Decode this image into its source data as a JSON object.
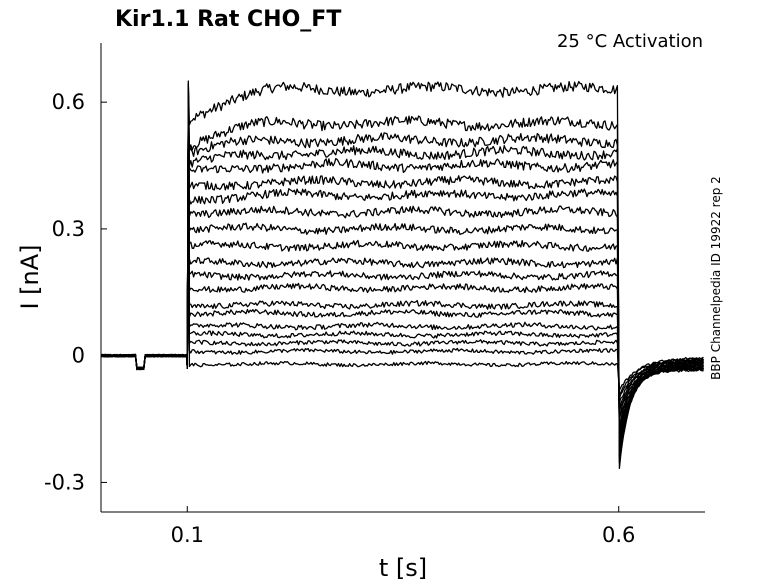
{
  "chart_data": {
    "type": "line",
    "title": "Kir1.1  Rat  CHO_FT",
    "subtitle": "25 °C  Activation",
    "xlabel": "t [s]",
    "ylabel": "I [nA]",
    "side_label": "BBP Channelpedia ID 19922 rep 2",
    "xlim": [
      0.0,
      0.7
    ],
    "ylim": [
      -0.37,
      0.74
    ],
    "xticks": [
      0.1,
      0.6
    ],
    "xtick_labels": [
      "0.1",
      "0.6"
    ],
    "yticks": [
      -0.3,
      0,
      0.3,
      0.6
    ],
    "ytick_labels": [
      "-0.3",
      "0",
      "0.3",
      "0.6"
    ],
    "grid": false,
    "pulse": {
      "start": 0.1,
      "end": 0.6
    },
    "artifact": {
      "start": 0.04,
      "end": 0.05,
      "value": -0.03
    },
    "series_steady_state_nA": [
      0.63,
      0.55,
      0.51,
      0.48,
      0.45,
      0.41,
      0.38,
      0.34,
      0.3,
      0.26,
      0.22,
      0.19,
      0.16,
      0.12,
      0.1,
      0.07,
      0.05,
      0.03,
      0.01,
      -0.02
    ],
    "series_initial_nA": [
      0.56,
      0.5,
      0.48,
      0.45,
      0.43,
      0.4,
      0.37,
      0.34,
      0.3,
      0.26,
      0.22,
      0.19,
      0.16,
      0.12,
      0.1,
      0.07,
      0.05,
      0.03,
      0.01,
      -0.02
    ],
    "tail_min_nA": -0.28
  }
}
